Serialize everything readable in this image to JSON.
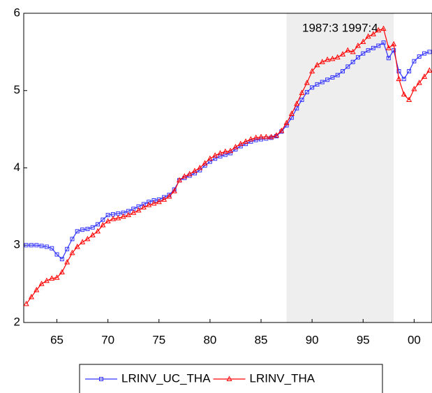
{
  "chart_data": {
    "type": "line",
    "x": [
      1962.0,
      1962.5,
      1963.0,
      1963.5,
      1964.0,
      1964.5,
      1965.0,
      1965.5,
      1966.0,
      1966.5,
      1967.0,
      1967.5,
      1968.0,
      1968.5,
      1969.0,
      1969.5,
      1970.0,
      1970.5,
      1971.0,
      1971.5,
      1972.0,
      1972.5,
      1973.0,
      1973.5,
      1974.0,
      1974.5,
      1975.0,
      1975.5,
      1976.0,
      1976.5,
      1977.0,
      1977.5,
      1978.0,
      1978.5,
      1979.0,
      1979.5,
      1980.0,
      1980.5,
      1981.0,
      1981.5,
      1982.0,
      1982.5,
      1983.0,
      1983.5,
      1984.0,
      1984.5,
      1985.0,
      1985.5,
      1986.0,
      1986.5,
      1987.0,
      1987.5,
      1988.0,
      1988.5,
      1989.0,
      1989.5,
      1990.0,
      1990.5,
      1991.0,
      1991.5,
      1992.0,
      1992.5,
      1993.0,
      1993.5,
      1994.0,
      1994.5,
      1995.0,
      1995.5,
      1996.0,
      1996.5,
      1997.0,
      1997.5,
      1998.0,
      1998.5,
      1999.0,
      1999.5,
      2000.0,
      2000.5,
      2001.0,
      2001.5
    ],
    "series": [
      {
        "name": "LRINV_UC_THA",
        "color": "#3333ff",
        "marker": "square",
        "values": [
          3.0,
          3.0,
          3.0,
          2.99,
          2.98,
          2.96,
          2.88,
          2.82,
          2.95,
          3.08,
          3.18,
          3.2,
          3.21,
          3.23,
          3.27,
          3.33,
          3.39,
          3.4,
          3.41,
          3.42,
          3.44,
          3.47,
          3.5,
          3.53,
          3.56,
          3.58,
          3.59,
          3.62,
          3.65,
          3.72,
          3.84,
          3.87,
          3.9,
          3.93,
          3.97,
          4.03,
          4.08,
          4.12,
          4.15,
          4.17,
          4.19,
          4.24,
          4.28,
          4.31,
          4.34,
          4.36,
          4.37,
          4.38,
          4.39,
          4.41,
          4.47,
          4.55,
          4.65,
          4.77,
          4.88,
          4.98,
          5.04,
          5.08,
          5.11,
          5.14,
          5.17,
          5.2,
          5.25,
          5.31,
          5.37,
          5.43,
          5.48,
          5.52,
          5.55,
          5.58,
          5.62,
          5.42,
          5.52,
          5.25,
          5.15,
          5.25,
          5.38,
          5.44,
          5.48,
          5.5
        ]
      },
      {
        "name": "LRINV_THA",
        "color": "#ff0000",
        "marker": "triangle",
        "values": [
          2.24,
          2.33,
          2.42,
          2.5,
          2.54,
          2.57,
          2.58,
          2.65,
          2.78,
          2.9,
          2.98,
          3.04,
          3.08,
          3.13,
          3.18,
          3.26,
          3.31,
          3.34,
          3.35,
          3.37,
          3.39,
          3.42,
          3.45,
          3.49,
          3.52,
          3.54,
          3.56,
          3.59,
          3.63,
          3.7,
          3.84,
          3.89,
          3.92,
          3.96,
          4.0,
          4.06,
          4.12,
          4.16,
          4.19,
          4.21,
          4.22,
          4.27,
          4.31,
          4.34,
          4.37,
          4.39,
          4.4,
          4.4,
          4.4,
          4.42,
          4.48,
          4.58,
          4.7,
          4.83,
          4.97,
          5.1,
          5.25,
          5.33,
          5.37,
          5.4,
          5.41,
          5.43,
          5.47,
          5.52,
          5.5,
          5.58,
          5.63,
          5.7,
          5.73,
          5.78,
          5.8,
          5.55,
          5.6,
          5.15,
          4.95,
          4.88,
          5.02,
          5.1,
          5.18,
          5.26
        ]
      }
    ],
    "xlim": [
      1961.75,
      2001.75
    ],
    "xticks": [
      {
        "value": 1965,
        "label": "65"
      },
      {
        "value": 1970,
        "label": "70"
      },
      {
        "value": 1975,
        "label": "75"
      },
      {
        "value": 1980,
        "label": "80"
      },
      {
        "value": 1985,
        "label": "85"
      },
      {
        "value": 1990,
        "label": "90"
      },
      {
        "value": 1995,
        "label": "95"
      },
      {
        "value": 2000,
        "label": "00"
      }
    ],
    "ylim": [
      2,
      6
    ],
    "yticks": [
      2,
      3,
      4,
      5,
      6
    ],
    "shading": {
      "label": "1987:3 1997:4",
      "x": [
        1987.5,
        1998.0
      ],
      "color": "#eeeeee"
    },
    "legend": "bottom"
  }
}
